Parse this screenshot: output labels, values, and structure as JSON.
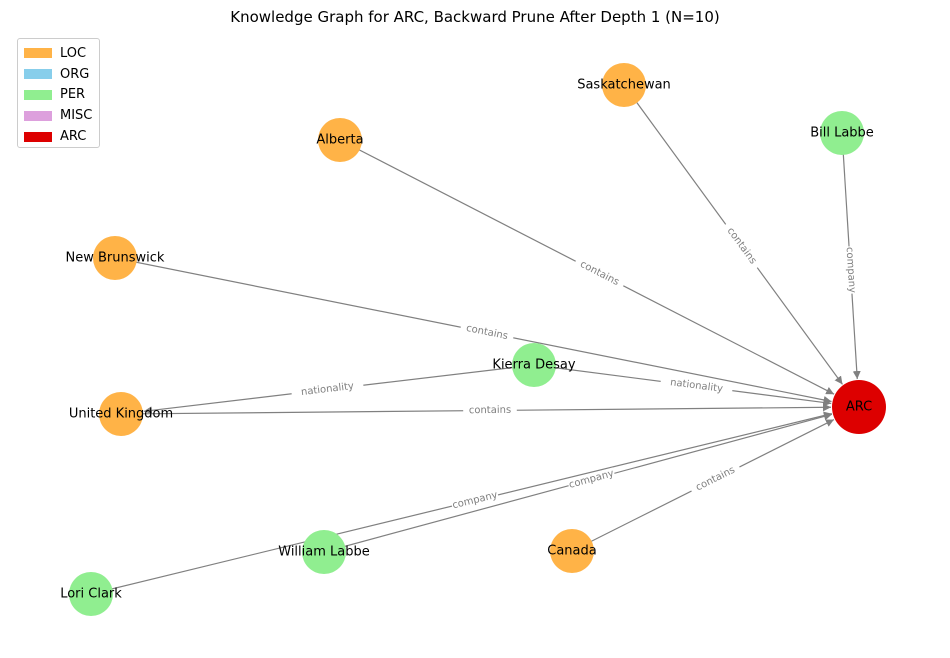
{
  "title": "Knowledge Graph for ARC, Backward Prune After Depth 1 (N=10)",
  "legend": [
    {
      "label": "LOC",
      "color": "#FFB347"
    },
    {
      "label": "ORG",
      "color": "#87CEEB"
    },
    {
      "label": "PER",
      "color": "#90EE90"
    },
    {
      "label": "MISC",
      "color": "#DDA0DD"
    },
    {
      "label": "ARC",
      "color": "#DD0000"
    }
  ],
  "nodes": [
    {
      "id": "saskatchewan",
      "label": "Saskatchewan",
      "type": "LOC"
    },
    {
      "id": "alberta",
      "label": "Alberta",
      "type": "LOC"
    },
    {
      "id": "bill-labbe",
      "label": "Bill Labbe",
      "type": "PER"
    },
    {
      "id": "new-brunswick",
      "label": "New Brunswick",
      "type": "LOC"
    },
    {
      "id": "kierra-desay",
      "label": "Kierra Desay",
      "type": "PER"
    },
    {
      "id": "united-kingdom",
      "label": "United Kingdom",
      "type": "LOC"
    },
    {
      "id": "arc",
      "label": "ARC",
      "type": "ARC"
    },
    {
      "id": "william-labbe",
      "label": "William Labbe",
      "type": "PER"
    },
    {
      "id": "canada",
      "label": "Canada",
      "type": "LOC"
    },
    {
      "id": "lori-clark",
      "label": "Lori Clark",
      "type": "PER"
    }
  ],
  "edges": [
    {
      "source": "saskatchewan",
      "target": "arc",
      "label": "contains"
    },
    {
      "source": "alberta",
      "target": "arc",
      "label": "contains"
    },
    {
      "source": "bill-labbe",
      "target": "arc",
      "label": "company"
    },
    {
      "source": "new-brunswick",
      "target": "arc",
      "label": "contains"
    },
    {
      "source": "kierra-desay",
      "target": "arc",
      "label": "nationality"
    },
    {
      "source": "kierra-desay",
      "target": "united-kingdom",
      "label": "nationality"
    },
    {
      "source": "united-kingdom",
      "target": "arc",
      "label": "contains"
    },
    {
      "source": "william-labbe",
      "target": "arc",
      "label": "company"
    },
    {
      "source": "lori-clark",
      "target": "arc",
      "label": "company"
    },
    {
      "source": "canada",
      "target": "arc",
      "label": "contains"
    }
  ],
  "colors": {
    "edge": "#808080",
    "edge_label": "#808080"
  }
}
